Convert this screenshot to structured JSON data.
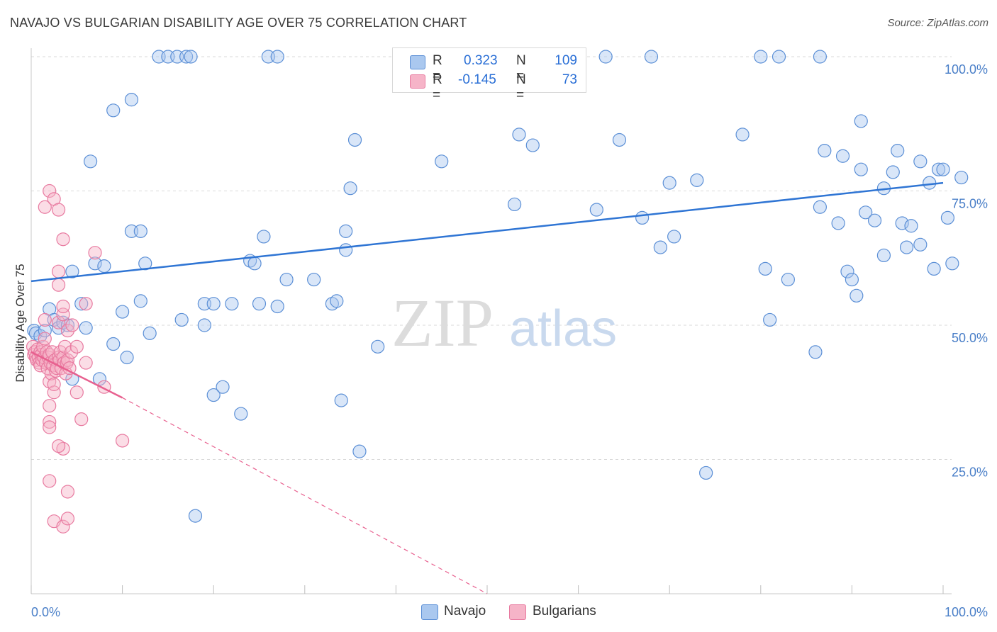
{
  "title": "NAVAJO VS BULGARIAN DISABILITY AGE OVER 75 CORRELATION CHART",
  "source": "Source: ZipAtlas.com",
  "watermark": {
    "zip": "ZIP",
    "atlas": "atlas"
  },
  "legend": {
    "r_label": "R =",
    "n_label": "N =",
    "rows": [
      {
        "r": "0.323",
        "n": "109"
      },
      {
        "r": "-0.145",
        "n": "73"
      }
    ]
  },
  "colors": {
    "navajo_fill": "#aac8ef",
    "navajo_stroke": "#5b8fd6",
    "navajo_line": "#2f75d4",
    "bulgarian_fill": "#f6b4c8",
    "bulgarian_stroke": "#e87aa0",
    "bulgarian_line": "#e8608f",
    "axis_text": "#4a7fc8"
  },
  "chart_data": {
    "type": "scatter",
    "title": "NAVAJO VS BULGARIAN DISABILITY AGE OVER 75 CORRELATION CHART",
    "xlabel": "",
    "ylabel": "Disability Age Over 75",
    "xlim": [
      0,
      100
    ],
    "ylim": [
      0,
      102
    ],
    "x_tick_labels": [
      "0.0%",
      "100.0%"
    ],
    "y_tick_labels": [
      "100.0%",
      "75.0%",
      "50.0%",
      "25.0%"
    ],
    "y_ticks": [
      100,
      75,
      50,
      25
    ],
    "grid": "horizontal dashed",
    "legend_position": "top-center",
    "series": [
      {
        "name": "Navajo",
        "r": 0.323,
        "n": 109,
        "trend": {
          "x": [
            0,
            100
          ],
          "y": [
            58.2,
            76.5
          ]
        },
        "points": [
          [
            0.3,
            49
          ],
          [
            0.5,
            48.5
          ],
          [
            1,
            48
          ],
          [
            1.5,
            49
          ],
          [
            2,
            53
          ],
          [
            2.5,
            51
          ],
          [
            3,
            49.5
          ],
          [
            3.5,
            50.5
          ],
          [
            4,
            50
          ],
          [
            4.5,
            60
          ],
          [
            4.5,
            40
          ],
          [
            5.5,
            54
          ],
          [
            6,
            49.5
          ],
          [
            6.5,
            80.5
          ],
          [
            7,
            61.5
          ],
          [
            7.5,
            40
          ],
          [
            8,
            61
          ],
          [
            9,
            46.5
          ],
          [
            9,
            90
          ],
          [
            10,
            52.5
          ],
          [
            10.5,
            44
          ],
          [
            11,
            67.5
          ],
          [
            11,
            92
          ],
          [
            12,
            54.5
          ],
          [
            12,
            67.5
          ],
          [
            12.5,
            61.5
          ],
          [
            13,
            48.5
          ],
          [
            14,
            100
          ],
          [
            15,
            100
          ],
          [
            16,
            100
          ],
          [
            16.5,
            51
          ],
          [
            17,
            100
          ],
          [
            17.5,
            100
          ],
          [
            18,
            14.5
          ],
          [
            19,
            54
          ],
          [
            19,
            50
          ],
          [
            20,
            54
          ],
          [
            20,
            37
          ],
          [
            21,
            38.5
          ],
          [
            22,
            54
          ],
          [
            23,
            33.5
          ],
          [
            24,
            62
          ],
          [
            24.5,
            61.5
          ],
          [
            25,
            54
          ],
          [
            25.5,
            66.5
          ],
          [
            26,
            100
          ],
          [
            27,
            100
          ],
          [
            27,
            53.5
          ],
          [
            28,
            58.5
          ],
          [
            31,
            58.5
          ],
          [
            33,
            54
          ],
          [
            33.5,
            54.5
          ],
          [
            34,
            36
          ],
          [
            34.5,
            64
          ],
          [
            34.5,
            67.5
          ],
          [
            35,
            75.5
          ],
          [
            35.5,
            84.5
          ],
          [
            36,
            26.5
          ],
          [
            38,
            46
          ],
          [
            45,
            80.5
          ],
          [
            53,
            72.5
          ],
          [
            53.5,
            85.5
          ],
          [
            55,
            83.5
          ],
          [
            58.5,
            100
          ],
          [
            62,
            71.5
          ],
          [
            63,
            100
          ],
          [
            64.5,
            84.5
          ],
          [
            67,
            70
          ],
          [
            68,
            100
          ],
          [
            69,
            64.5
          ],
          [
            70,
            76.5
          ],
          [
            70.5,
            66.5
          ],
          [
            73,
            77
          ],
          [
            78,
            85.5
          ],
          [
            80,
            100
          ],
          [
            80.5,
            60.5
          ],
          [
            81,
            51
          ],
          [
            82,
            100
          ],
          [
            83,
            58.5
          ],
          [
            86,
            45
          ],
          [
            86.5,
            100
          ],
          [
            86.5,
            72
          ],
          [
            87,
            82.5
          ],
          [
            88.5,
            69
          ],
          [
            89,
            81.5
          ],
          [
            89.5,
            60
          ],
          [
            90,
            58.5
          ],
          [
            90.5,
            55.5
          ],
          [
            91,
            79
          ],
          [
            91,
            88
          ],
          [
            91.5,
            71
          ],
          [
            92.5,
            69.5
          ],
          [
            93.5,
            63
          ],
          [
            93.5,
            75.5
          ],
          [
            94.5,
            78.5
          ],
          [
            95,
            82.5
          ],
          [
            95.5,
            69
          ],
          [
            96,
            64.5
          ],
          [
            96.5,
            68.5
          ],
          [
            97.5,
            65
          ],
          [
            97.5,
            80.5
          ],
          [
            98.5,
            76.5
          ],
          [
            99,
            60.5
          ],
          [
            99.5,
            79
          ],
          [
            100,
            79
          ],
          [
            100.5,
            70
          ],
          [
            101,
            61.5
          ],
          [
            102,
            77.5
          ],
          [
            74,
            22.5
          ]
        ]
      },
      {
        "name": "Bulgarians",
        "r": -0.145,
        "n": 73,
        "trend_solid": {
          "x": [
            0,
            10
          ],
          "y": [
            45,
            36.5
          ]
        },
        "trend_dashed": {
          "x": [
            10,
            50
          ],
          "y": [
            36.5,
            0
          ]
        },
        "points": [
          [
            0.2,
            46
          ],
          [
            0.3,
            44.5
          ],
          [
            0.4,
            45
          ],
          [
            0.5,
            44
          ],
          [
            0.6,
            43.5
          ],
          [
            0.7,
            45.5
          ],
          [
            0.8,
            44
          ],
          [
            0.9,
            43
          ],
          [
            1,
            45
          ],
          [
            1,
            42.5
          ],
          [
            1.1,
            44.5
          ],
          [
            1.2,
            43.5
          ],
          [
            1.3,
            46
          ],
          [
            1.4,
            44
          ],
          [
            1.5,
            47.5
          ],
          [
            1.6,
            43
          ],
          [
            1.7,
            45
          ],
          [
            1.8,
            42
          ],
          [
            1.9,
            44
          ],
          [
            2,
            39.5
          ],
          [
            2,
            44.5
          ],
          [
            2.1,
            43
          ],
          [
            2.2,
            41
          ],
          [
            2.3,
            45
          ],
          [
            2.4,
            42.5
          ],
          [
            2.5,
            37.5
          ],
          [
            2.5,
            39
          ],
          [
            2.6,
            43.5
          ],
          [
            2.7,
            41.5
          ],
          [
            2.8,
            42
          ],
          [
            3,
            44
          ],
          [
            3,
            50.5
          ],
          [
            3.1,
            43.5
          ],
          [
            3.2,
            45
          ],
          [
            3.3,
            42
          ],
          [
            3.5,
            44
          ],
          [
            3.5,
            52
          ],
          [
            3.6,
            43
          ],
          [
            3.7,
            46
          ],
          [
            3.8,
            41
          ],
          [
            3.9,
            43
          ],
          [
            4,
            49
          ],
          [
            4,
            43.5
          ],
          [
            4.2,
            42
          ],
          [
            4.4,
            45
          ],
          [
            4.5,
            50
          ],
          [
            1.5,
            51
          ],
          [
            1.5,
            72
          ],
          [
            2,
            75
          ],
          [
            2.5,
            73.5
          ],
          [
            3,
            71.5
          ],
          [
            3.5,
            66
          ],
          [
            3,
            60
          ],
          [
            3,
            57.5
          ],
          [
            3.5,
            53.5
          ],
          [
            2,
            35
          ],
          [
            2,
            32
          ],
          [
            2,
            31
          ],
          [
            3.5,
            27
          ],
          [
            3,
            27.5
          ],
          [
            2,
            21
          ],
          [
            4,
            19
          ],
          [
            2.5,
            13.5
          ],
          [
            3.5,
            12.5
          ],
          [
            4,
            14
          ],
          [
            5,
            46
          ],
          [
            5,
            37.5
          ],
          [
            5.5,
            32.5
          ],
          [
            6,
            43
          ],
          [
            6,
            54
          ],
          [
            7,
            63.5
          ],
          [
            8,
            38.5
          ],
          [
            10,
            28.5
          ]
        ]
      }
    ]
  }
}
